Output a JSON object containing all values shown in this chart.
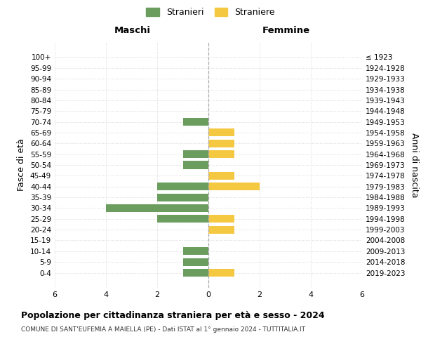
{
  "age_groups": [
    "100+",
    "95-99",
    "90-94",
    "85-89",
    "80-84",
    "75-79",
    "70-74",
    "65-69",
    "60-64",
    "55-59",
    "50-54",
    "45-49",
    "40-44",
    "35-39",
    "30-34",
    "25-29",
    "20-24",
    "15-19",
    "10-14",
    "5-9",
    "0-4"
  ],
  "birth_years": [
    "≤ 1923",
    "1924-1928",
    "1929-1933",
    "1934-1938",
    "1939-1943",
    "1944-1948",
    "1949-1953",
    "1954-1958",
    "1959-1963",
    "1964-1968",
    "1969-1973",
    "1974-1978",
    "1979-1983",
    "1984-1988",
    "1989-1993",
    "1994-1998",
    "1999-2003",
    "2004-2008",
    "2009-2013",
    "2014-2018",
    "2019-2023"
  ],
  "maschi": [
    0,
    0,
    0,
    0,
    0,
    0,
    1,
    0,
    0,
    1,
    1,
    0,
    2,
    2,
    4,
    2,
    0,
    0,
    1,
    1,
    1
  ],
  "femmine": [
    0,
    0,
    0,
    0,
    0,
    0,
    0,
    1,
    1,
    1,
    0,
    1,
    2,
    0,
    0,
    1,
    1,
    0,
    0,
    0,
    1
  ],
  "male_color": "#6B9E5E",
  "female_color": "#F5C842",
  "male_label": "Stranieri",
  "female_label": "Straniere",
  "title": "Popolazione per cittadinanza straniera per età e sesso - 2024",
  "subtitle": "COMUNE DI SANT'EUFEMIA A MAIELLA (PE) - Dati ISTAT al 1° gennaio 2024 - TUTTITALIA.IT",
  "xlabel_left": "Maschi",
  "xlabel_right": "Femmine",
  "ylabel_left": "Fasce di età",
  "ylabel_right": "Anni di nascita",
  "xlim": 6,
  "background_color": "#ffffff",
  "grid_color": "#d0d0d0"
}
